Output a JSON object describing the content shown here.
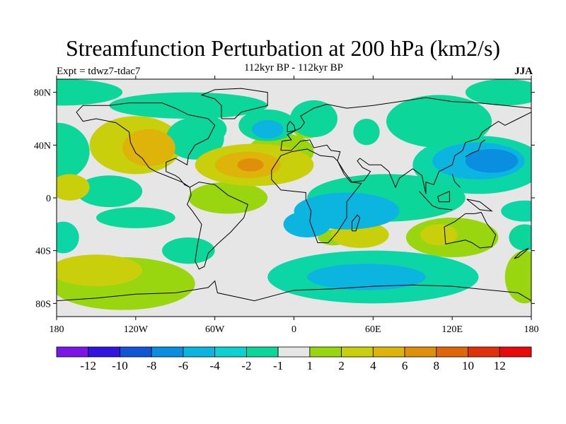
{
  "header": {
    "title": "Streamfunction Perturbation at 200 hPa (km2/s)",
    "subtitle": "112kyr BP - 112kyr BP",
    "left_label": "Expt = tdwz7-tdac7",
    "right_label": "JJA"
  },
  "map": {
    "projection": "cylindrical-equidistant",
    "lon_range": [
      -180,
      180
    ],
    "lat_range": [
      -90,
      90
    ],
    "lat_ticks": [
      {
        "value": 80,
        "label": "80N"
      },
      {
        "value": 40,
        "label": "40N"
      },
      {
        "value": 0,
        "label": "0"
      },
      {
        "value": -40,
        "label": "40S"
      },
      {
        "value": -80,
        "label": "80S"
      }
    ],
    "lon_ticks": [
      {
        "value": -180,
        "label": "180"
      },
      {
        "value": -120,
        "label": "120W"
      },
      {
        "value": -60,
        "label": "60W"
      },
      {
        "value": 0,
        "label": "0"
      },
      {
        "value": 60,
        "label": "60E"
      },
      {
        "value": 120,
        "label": "120E"
      },
      {
        "value": 180,
        "label": "180"
      }
    ],
    "background_color": "#e6e6e6",
    "field_blobs": [
      {
        "lon": -180,
        "lat": 35,
        "rlon": 25,
        "rlat": 22,
        "level": 2
      },
      {
        "lon": -175,
        "lat": 80,
        "rlon": 45,
        "rlat": 10,
        "level": 2
      },
      {
        "lon": -140,
        "lat": 5,
        "rlon": 25,
        "rlat": 12,
        "level": 2
      },
      {
        "lon": -170,
        "lat": 8,
        "rlon": 15,
        "rlat": 10,
        "level": 5
      },
      {
        "lon": -120,
        "lat": 40,
        "rlon": 35,
        "rlat": 22,
        "level": 5
      },
      {
        "lon": -110,
        "lat": 38,
        "rlon": 20,
        "rlat": 14,
        "level": 6
      },
      {
        "lon": -80,
        "lat": 70,
        "rlon": 60,
        "rlat": 10,
        "level": 2
      },
      {
        "lon": -75,
        "lat": 45,
        "rlon": 22,
        "rlat": 16,
        "level": 2
      },
      {
        "lon": -65,
        "lat": 52,
        "rlon": 14,
        "rlat": 10,
        "level": 2
      },
      {
        "lon": -30,
        "lat": 25,
        "rlon": 45,
        "rlat": 16,
        "level": 5
      },
      {
        "lon": -35,
        "lat": 25,
        "rlon": 25,
        "rlat": 10,
        "level": 6
      },
      {
        "lon": -33,
        "lat": 25,
        "rlon": 10,
        "rlat": 5,
        "level": 7
      },
      {
        "lon": -10,
        "lat": 35,
        "rlon": 25,
        "rlat": 14,
        "level": 4
      },
      {
        "lon": -50,
        "lat": 0,
        "rlon": 30,
        "rlat": 12,
        "level": 4
      },
      {
        "lon": -20,
        "lat": 55,
        "rlon": 22,
        "rlat": 12,
        "level": 2
      },
      {
        "lon": -20,
        "lat": 52,
        "rlon": 12,
        "rlat": 7,
        "level": 1
      },
      {
        "lon": 10,
        "lat": 55,
        "rlon": 12,
        "rlat": 10,
        "level": 4
      },
      {
        "lon": 15,
        "lat": 60,
        "rlon": 18,
        "rlat": 14,
        "level": 2
      },
      {
        "lon": 55,
        "lat": 50,
        "rlon": 10,
        "rlat": 10,
        "level": 2
      },
      {
        "lon": 110,
        "lat": 55,
        "rlon": 30,
        "rlat": 14,
        "level": 4
      },
      {
        "lon": 110,
        "lat": 58,
        "rlon": 40,
        "rlat": 20,
        "level": 2
      },
      {
        "lon": 160,
        "lat": 80,
        "rlon": 30,
        "rlat": 10,
        "level": 2
      },
      {
        "lon": 140,
        "lat": 25,
        "rlon": 50,
        "rlat": 22,
        "level": 3
      },
      {
        "lon": 140,
        "lat": 28,
        "rlon": 35,
        "rlat": 14,
        "level": 1
      },
      {
        "lon": 150,
        "lat": 28,
        "rlon": 20,
        "rlat": 9,
        "level": 0
      },
      {
        "lon": 70,
        "lat": 0,
        "rlon": 60,
        "rlat": 18,
        "level": 2
      },
      {
        "lon": 40,
        "lat": -10,
        "rlon": 40,
        "rlat": 14,
        "level": 1
      },
      {
        "lon": 10,
        "lat": -20,
        "rlon": 18,
        "rlat": 10,
        "level": 1
      },
      {
        "lon": 50,
        "lat": -28,
        "rlon": 22,
        "rlat": 10,
        "level": 5
      },
      {
        "lon": 30,
        "lat": -30,
        "rlon": 12,
        "rlat": 6,
        "level": 4
      },
      {
        "lon": 120,
        "lat": -30,
        "rlon": 35,
        "rlat": 15,
        "level": 4
      },
      {
        "lon": 110,
        "lat": -28,
        "rlon": 14,
        "rlat": 8,
        "level": 5
      },
      {
        "lon": 175,
        "lat": -10,
        "rlon": 18,
        "rlat": 8,
        "level": 3
      },
      {
        "lon": 175,
        "lat": -30,
        "rlon": 12,
        "rlat": 10,
        "level": 2
      },
      {
        "lon": 175,
        "lat": -60,
        "rlon": 15,
        "rlat": 20,
        "level": 4
      },
      {
        "lon": 60,
        "lat": -60,
        "rlon": 80,
        "rlat": 20,
        "level": 3
      },
      {
        "lon": 55,
        "lat": -60,
        "rlon": 45,
        "rlat": 10,
        "level": 1
      },
      {
        "lon": -130,
        "lat": -65,
        "rlon": 55,
        "rlat": 20,
        "level": 4
      },
      {
        "lon": -150,
        "lat": -55,
        "rlon": 35,
        "rlat": 12,
        "level": 5
      },
      {
        "lon": -175,
        "lat": -30,
        "rlon": 12,
        "rlat": 12,
        "level": 3
      },
      {
        "lon": -80,
        "lat": -40,
        "rlon": 20,
        "rlat": 10,
        "level": 2
      },
      {
        "lon": -120,
        "lat": -15,
        "rlon": 30,
        "rlat": 8,
        "level": 2
      }
    ],
    "coastline_note": "coast"
  },
  "colorbar": {
    "colors": [
      "#7a17e6",
      "#3114e0",
      "#0f55d6",
      "#0a8ee0",
      "#0cb5e0",
      "#0dd1d1",
      "#0dd69a",
      "#e6e6e6",
      "#9ad60f",
      "#c9cf0a",
      "#deb40a",
      "#e08f0a",
      "#e0660a",
      "#e0320a",
      "#e60a0a"
    ],
    "labels": [
      "-12",
      "-10",
      "-8",
      "-6",
      "-4",
      "-2",
      "-1",
      "1",
      "2",
      "4",
      "6",
      "8",
      "10",
      "12"
    ]
  },
  "level_colors": {
    "0": "#0a8ee0",
    "1": "#0cb5e0",
    "2": "#0dd69a",
    "3": "#0dd6a6",
    "4": "#9ad60f",
    "5": "#c9cf0a",
    "6": "#deb40a",
    "7": "#e08f0a"
  }
}
